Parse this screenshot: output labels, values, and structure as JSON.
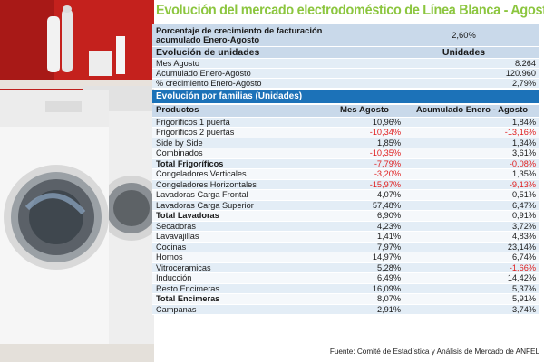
{
  "title": "Evolución del mercado electrodoméstico de Línea Blanca - Agosto",
  "billing": {
    "label_line1": "Porcentaje de crecimiento de facturación",
    "label_line2": "acumulado Enero-Agosto",
    "value": "2,60%"
  },
  "units": {
    "header": "Evolución de unidades",
    "column": "Unidades",
    "rows": [
      {
        "label": "Mes Agosto",
        "value": "8.264"
      },
      {
        "label": "Acumulado Enero-Agosto",
        "value": "120.960"
      },
      {
        "label": "% crecimiento Enero-Agosto",
        "value": "2,79%"
      }
    ]
  },
  "families": {
    "title": "Evolución por familias (Unidades)",
    "headers": [
      "Productos",
      "Mes Agosto",
      "Acumulado Enero - Agosto"
    ],
    "rows": [
      {
        "product": "Frigoríficos 1 puerta",
        "month": "10,96%",
        "cumulative": "1,84%"
      },
      {
        "product": "Frigoríficos 2 puertas",
        "month": "-10,34%",
        "cumulative": "-13,16%"
      },
      {
        "product": "Side by Side",
        "month": "1,85%",
        "cumulative": "1,34%"
      },
      {
        "product": "Combinados",
        "month": "-10,35%",
        "cumulative": "3,61%"
      },
      {
        "product": "Total Frigoríficos",
        "month": "-7,79%",
        "cumulative": "-0,08%",
        "total": true
      },
      {
        "product": "Congeladores Verticales",
        "month": "-3,20%",
        "cumulative": "1,35%"
      },
      {
        "product": "Congeladores Horizontales",
        "month": "-15,97%",
        "cumulative": "-9,13%"
      },
      {
        "product": "Lavadoras Carga Frontal",
        "month": "4,07%",
        "cumulative": "0,51%"
      },
      {
        "product": "Lavadoras Carga Superior",
        "month": "57,48%",
        "cumulative": "6,47%"
      },
      {
        "product": "Total Lavadoras",
        "month": "6,90%",
        "cumulative": "0,91%",
        "total": true
      },
      {
        "product": "Secadoras",
        "month": "4,23%",
        "cumulative": "3,72%"
      },
      {
        "product": "Lavavajillas",
        "month": "1,41%",
        "cumulative": "4,83%"
      },
      {
        "product": "Cocinas",
        "month": "7,97%",
        "cumulative": "23,14%"
      },
      {
        "product": "Hornos",
        "month": "14,97%",
        "cumulative": "6,74%"
      },
      {
        "product": "Vitroceramicas",
        "month": "5,28%",
        "cumulative": "-1,66%"
      },
      {
        "product": "Inducción",
        "month": "6,49%",
        "cumulative": "14,42%"
      },
      {
        "product": "Resto Encimeras",
        "month": "16,09%",
        "cumulative": "5,37%"
      },
      {
        "product": "Total Encimeras",
        "month": "8,07%",
        "cumulative": "5,91%",
        "total": true
      },
      {
        "product": "Campanas",
        "month": "2,91%",
        "cumulative": "3,74%"
      }
    ]
  },
  "source": "Fuente: Comité de Estadística y Análisis de Mercado de ANFEL",
  "colors": {
    "title": "#8cc63f",
    "band": "#1c72b8",
    "header": "#c9d9ea",
    "row": "#e3edf6",
    "negative": "#e02020"
  }
}
